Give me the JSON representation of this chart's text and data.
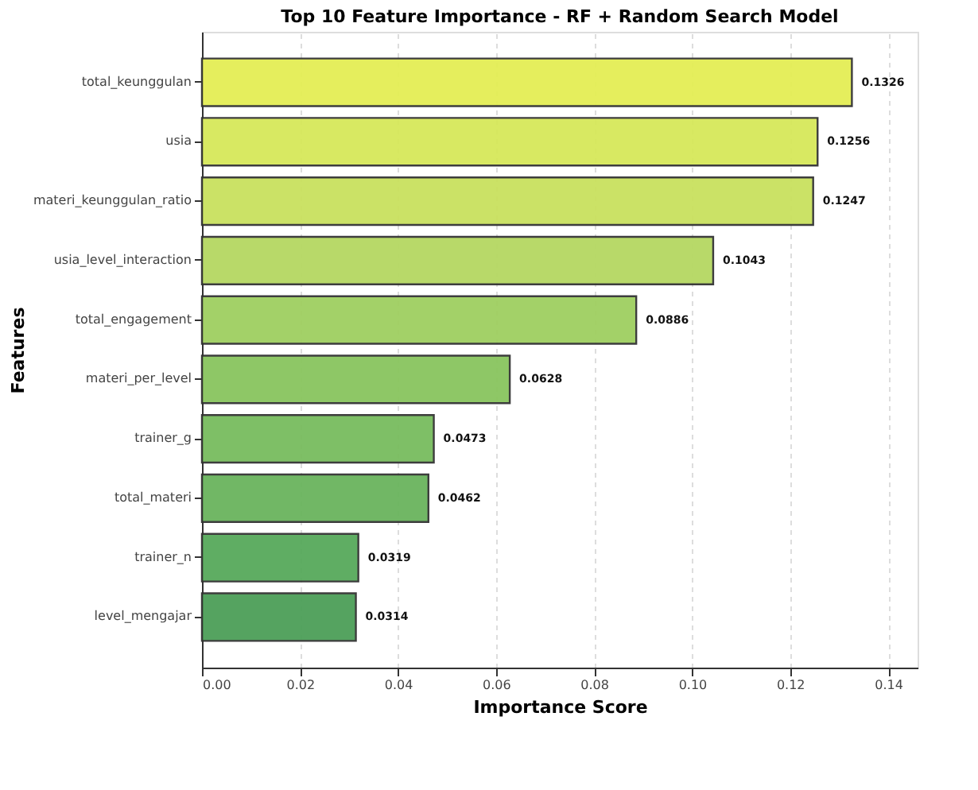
{
  "chart_data": {
    "type": "bar",
    "orientation": "horizontal",
    "title": "Top 10 Feature Importance - RF + Random Search Model",
    "xlabel": "Importance Score",
    "ylabel": "Features",
    "categories": [
      "total_keunggulan",
      "usia",
      "materi_keunggulan_ratio",
      "usia_level_interaction",
      "total_engagement",
      "materi_per_level",
      "trainer_g",
      "total_materi",
      "trainer_n",
      "level_mengajar"
    ],
    "values": [
      0.1326,
      0.1256,
      0.1247,
      0.1043,
      0.0886,
      0.0628,
      0.0473,
      0.0462,
      0.0319,
      0.0314
    ],
    "colors": [
      "#e4ee55",
      "#d6e85a",
      "#c9e15e",
      "#b5d862",
      "#9fcf60",
      "#89c55e",
      "#78bc5e",
      "#6ab45d",
      "#57a95b",
      "#4c9f58"
    ],
    "data_labels": true,
    "xlim": [
      0,
      0.146
    ],
    "xticks": [
      {
        "value": 0,
        "label": "0.00"
      },
      0.02,
      0.04,
      0.06,
      0.08,
      {
        "value": 0.1,
        "label": "0.10"
      },
      0.12,
      0.14
    ],
    "grid": "x"
  }
}
